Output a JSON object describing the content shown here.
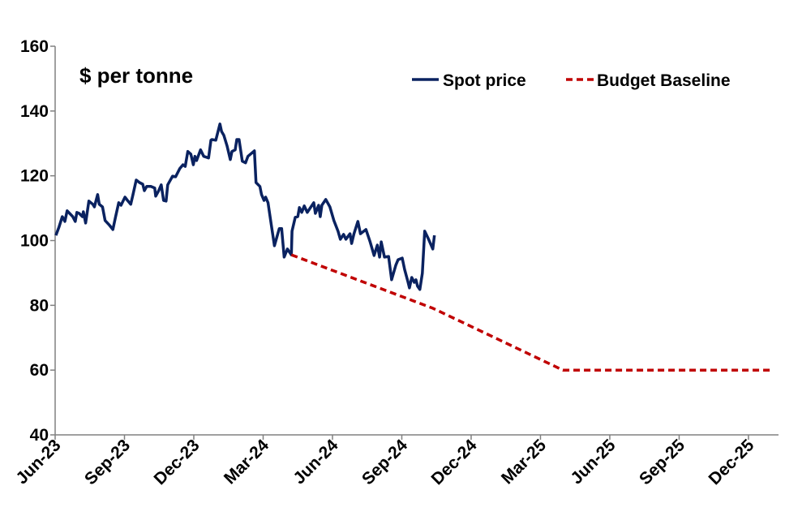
{
  "chart_data": {
    "type": "line",
    "title": "$ per tonne",
    "xlabel": "",
    "ylabel": "$ per tonne",
    "x_units": "months since Jun-23",
    "xlim": [
      0,
      31.3
    ],
    "ylim": [
      40,
      160
    ],
    "yticks": [
      "40",
      "60",
      "80",
      "100",
      "120",
      "140",
      "160"
    ],
    "yticks_values": [
      40,
      60,
      80,
      100,
      120,
      140,
      160
    ],
    "xticks": [
      "Jun-23",
      "Sep-23",
      "Dec-23",
      "Mar-24",
      "Jun-24",
      "Sep-24",
      "Dec-24",
      "Mar-25",
      "Jun-25",
      "Sep-25",
      "Dec-25"
    ],
    "xticks_values": [
      0,
      3,
      6,
      9,
      12,
      15,
      18,
      21,
      24,
      27,
      30
    ],
    "grid": false,
    "legend_position": "top-right",
    "series": [
      {
        "name": "Spot price",
        "color": "#0a2260",
        "style": "solid",
        "points": [
          [
            0.03,
            101.6
          ],
          [
            0.17,
            104.2
          ],
          [
            0.31,
            107.4
          ],
          [
            0.42,
            105.9
          ],
          [
            0.52,
            109.2
          ],
          [
            0.76,
            107.4
          ],
          [
            0.87,
            105.9
          ],
          [
            0.94,
            108.7
          ],
          [
            1.04,
            108.4
          ],
          [
            1.18,
            107.4
          ],
          [
            1.22,
            108.9
          ],
          [
            1.32,
            105.4
          ],
          [
            1.46,
            112.2
          ],
          [
            1.63,
            111.2
          ],
          [
            1.7,
            110.4
          ],
          [
            1.84,
            114.2
          ],
          [
            1.91,
            111.2
          ],
          [
            2.05,
            110.4
          ],
          [
            2.16,
            106.2
          ],
          [
            2.33,
            104.9
          ],
          [
            2.5,
            103.4
          ],
          [
            2.61,
            107.2
          ],
          [
            2.75,
            111.7
          ],
          [
            2.85,
            110.9
          ],
          [
            3.02,
            113.4
          ],
          [
            3.13,
            112.4
          ],
          [
            3.27,
            111.2
          ],
          [
            3.37,
            114.2
          ],
          [
            3.51,
            118.7
          ],
          [
            3.65,
            117.9
          ],
          [
            3.79,
            117.4
          ],
          [
            3.86,
            115.4
          ],
          [
            3.96,
            116.7
          ],
          [
            4.14,
            116.7
          ],
          [
            4.31,
            116.2
          ],
          [
            4.35,
            113.7
          ],
          [
            4.48,
            115.4
          ],
          [
            4.59,
            117.2
          ],
          [
            4.69,
            112.4
          ],
          [
            4.8,
            112.2
          ],
          [
            4.87,
            117.2
          ],
          [
            5.08,
            119.9
          ],
          [
            5.21,
            119.7
          ],
          [
            5.39,
            122.2
          ],
          [
            5.53,
            123.4
          ],
          [
            5.63,
            122.9
          ],
          [
            5.74,
            127.5
          ],
          [
            5.87,
            126.7
          ],
          [
            5.98,
            123.4
          ],
          [
            6.05,
            126.0
          ],
          [
            6.12,
            124.7
          ],
          [
            6.29,
            128.0
          ],
          [
            6.43,
            126.0
          ],
          [
            6.64,
            125.5
          ],
          [
            6.74,
            131.0
          ],
          [
            6.78,
            131.2
          ],
          [
            6.95,
            131.0
          ],
          [
            7.13,
            136.0
          ],
          [
            7.2,
            133.7
          ],
          [
            7.3,
            132.5
          ],
          [
            7.44,
            129.2
          ],
          [
            7.58,
            125.0
          ],
          [
            7.65,
            127.5
          ],
          [
            7.79,
            128.0
          ],
          [
            7.86,
            131.2
          ],
          [
            7.96,
            131.2
          ],
          [
            8.1,
            124.5
          ],
          [
            8.24,
            124.0
          ],
          [
            8.34,
            126.0
          ],
          [
            8.62,
            127.7
          ],
          [
            8.69,
            117.9
          ],
          [
            8.86,
            116.7
          ],
          [
            8.93,
            114.2
          ],
          [
            9.04,
            112.4
          ],
          [
            9.11,
            113.4
          ],
          [
            9.21,
            111.7
          ],
          [
            9.35,
            104.9
          ],
          [
            9.49,
            98.4
          ],
          [
            9.7,
            103.7
          ],
          [
            9.8,
            103.7
          ],
          [
            9.91,
            94.9
          ],
          [
            10.05,
            97.4
          ],
          [
            10.22,
            95.6
          ],
          [
            10.25,
            102.9
          ],
          [
            10.39,
            107.2
          ],
          [
            10.5,
            107.4
          ],
          [
            10.57,
            110.2
          ],
          [
            10.67,
            108.7
          ],
          [
            10.78,
            110.7
          ],
          [
            10.91,
            108.7
          ],
          [
            11.02,
            109.9
          ],
          [
            11.19,
            111.7
          ],
          [
            11.26,
            108.4
          ],
          [
            11.4,
            110.9
          ],
          [
            11.47,
            107.4
          ],
          [
            11.54,
            110.9
          ],
          [
            11.71,
            112.7
          ],
          [
            11.89,
            110.4
          ],
          [
            12.06,
            106.2
          ],
          [
            12.24,
            102.9
          ],
          [
            12.34,
            100.4
          ],
          [
            12.48,
            101.9
          ],
          [
            12.58,
            100.4
          ],
          [
            12.76,
            102.1
          ],
          [
            12.83,
            99.1
          ],
          [
            12.93,
            102.1
          ],
          [
            13.1,
            105.9
          ],
          [
            13.21,
            102.1
          ],
          [
            13.45,
            103.4
          ],
          [
            13.63,
            99.6
          ],
          [
            13.8,
            95.4
          ],
          [
            13.94,
            98.6
          ],
          [
            14.04,
            94.9
          ],
          [
            14.11,
            99.6
          ],
          [
            14.25,
            94.9
          ],
          [
            14.43,
            95.1
          ],
          [
            14.56,
            87.9
          ],
          [
            14.74,
            92.4
          ],
          [
            14.84,
            94.1
          ],
          [
            15.02,
            94.6
          ],
          [
            15.12,
            91.1
          ],
          [
            15.26,
            87.4
          ],
          [
            15.33,
            85.4
          ],
          [
            15.43,
            88.6
          ],
          [
            15.54,
            87.1
          ],
          [
            15.61,
            87.9
          ],
          [
            15.68,
            85.9
          ],
          [
            15.78,
            84.9
          ],
          [
            15.89,
            89.9
          ],
          [
            15.99,
            102.9
          ],
          [
            16.16,
            100.4
          ],
          [
            16.34,
            97.4
          ],
          [
            16.41,
            101.6
          ]
        ]
      },
      {
        "name": "Budget Baseline",
        "color": "#c00000",
        "style": "dashed",
        "points": [
          [
            10.22,
            95.6
          ],
          [
            16.34,
            79.1
          ],
          [
            21.97,
            60
          ],
          [
            31.0,
            60
          ]
        ]
      }
    ]
  }
}
